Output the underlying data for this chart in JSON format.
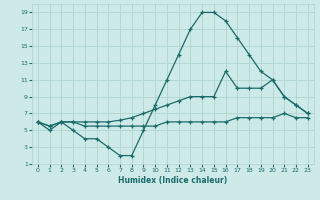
{
  "xlabel": "Humidex (Indice chaleur)",
  "bg_color": "#ceeae8",
  "grid_color": "#aed4d0",
  "line_color": "#1a6b6b",
  "xlim": [
    -0.5,
    23.5
  ],
  "ylim": [
    1,
    20
  ],
  "xticks": [
    0,
    1,
    2,
    3,
    4,
    5,
    6,
    7,
    8,
    9,
    10,
    11,
    12,
    13,
    14,
    15,
    16,
    17,
    18,
    19,
    20,
    21,
    22,
    23
  ],
  "yticks": [
    1,
    3,
    5,
    7,
    9,
    11,
    13,
    15,
    17,
    19
  ],
  "line1_x": [
    0,
    1,
    2,
    3,
    4,
    5,
    6,
    7,
    8,
    9,
    10,
    11,
    12,
    13,
    14,
    15,
    16,
    17,
    18,
    19,
    20,
    21,
    22,
    23
  ],
  "line1_y": [
    6,
    5,
    6,
    5,
    4,
    4,
    3,
    2,
    2,
    5,
    8,
    11,
    14,
    17,
    19,
    19,
    18,
    16,
    14,
    12,
    11,
    9,
    8,
    7
  ],
  "line2_x": [
    0,
    1,
    2,
    3,
    4,
    5,
    6,
    7,
    8,
    9,
    10,
    11,
    12,
    13,
    14,
    15,
    16,
    17,
    18,
    19,
    20,
    21,
    22,
    23
  ],
  "line2_y": [
    6,
    5.5,
    6,
    6,
    6,
    6,
    6,
    6.2,
    6.5,
    7,
    7.5,
    8,
    8.5,
    9,
    9,
    9,
    12,
    10,
    10,
    10,
    11,
    9,
    8,
    7
  ],
  "line3_x": [
    0,
    1,
    2,
    3,
    4,
    5,
    6,
    7,
    8,
    9,
    10,
    11,
    12,
    13,
    14,
    15,
    16,
    17,
    18,
    19,
    20,
    21,
    22,
    23
  ],
  "line3_y": [
    6,
    5.5,
    6,
    6,
    5.5,
    5.5,
    5.5,
    5.5,
    5.5,
    5.5,
    5.5,
    6,
    6,
    6,
    6,
    6,
    6,
    6.5,
    6.5,
    6.5,
    6.5,
    7,
    6.5,
    6.5
  ]
}
